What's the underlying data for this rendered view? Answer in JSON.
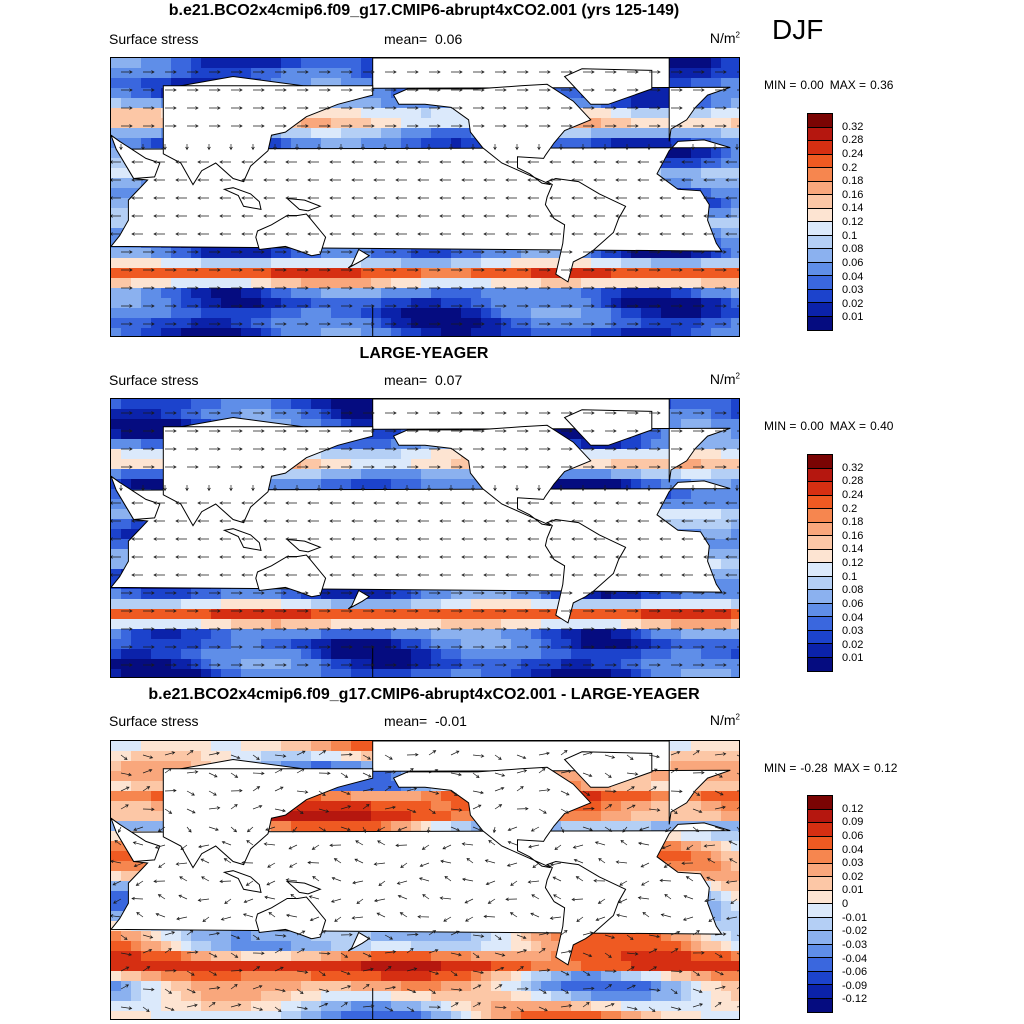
{
  "season": "DJF",
  "colors": {
    "land": "#ffffff",
    "coast": "#000000",
    "arrow": "#1a1a1a"
  },
  "icons": [
    "world-map",
    "wind-vector-arrow"
  ],
  "panels": [
    {
      "title": "b.e21.BCO2x4cmip6.f09_g17.CMIP6-abrupt4xCO2.001 (yrs 125-149)",
      "variable": "Surface stress",
      "mean_label": "mean=",
      "mean_value": "0.06",
      "units": "N/m",
      "units_exp": "2",
      "min_label": "MIN =",
      "min_value": "0.00",
      "max_label": "MAX =",
      "max_value": "0.36",
      "colorbar_ticks": [
        "0.32",
        "0.28",
        "0.24",
        "0.2",
        "0.18",
        "0.16",
        "0.14",
        "0.12",
        "0.1",
        "0.08",
        "0.06",
        "0.04",
        "0.03",
        "0.02",
        "0.01"
      ],
      "colorbar_colors": [
        "#7a0403",
        "#b5170f",
        "#d62f12",
        "#ef5a22",
        "#f6864f",
        "#f9a77c",
        "#fcc7a6",
        "#fde4d2",
        "#dbe9fb",
        "#b4cff5",
        "#8bb1ef",
        "#5f8ee8",
        "#3a67de",
        "#1c43cc",
        "#0b22aa",
        "#050c80"
      ],
      "mode": "abs"
    },
    {
      "title": "LARGE-YEAGER",
      "variable": "Surface stress",
      "mean_label": "mean=",
      "mean_value": "0.07",
      "units": "N/m",
      "units_exp": "2",
      "min_label": "MIN =",
      "min_value": "0.00",
      "max_label": "MAX =",
      "max_value": "0.40",
      "colorbar_ticks": [
        "0.32",
        "0.28",
        "0.24",
        "0.2",
        "0.18",
        "0.16",
        "0.14",
        "0.12",
        "0.1",
        "0.08",
        "0.06",
        "0.04",
        "0.03",
        "0.02",
        "0.01"
      ],
      "colorbar_colors": [
        "#7a0403",
        "#b5170f",
        "#d62f12",
        "#ef5a22",
        "#f6864f",
        "#f9a77c",
        "#fcc7a6",
        "#fde4d2",
        "#dbe9fb",
        "#b4cff5",
        "#8bb1ef",
        "#5f8ee8",
        "#3a67de",
        "#1c43cc",
        "#0b22aa",
        "#050c80"
      ],
      "mode": "abs"
    },
    {
      "title": "b.e21.BCO2x4cmip6.f09_g17.CMIP6-abrupt4xCO2.001 - LARGE-YEAGER",
      "variable": "Surface stress",
      "mean_label": "mean=",
      "mean_value": "-0.01",
      "units": "N/m",
      "units_exp": "2",
      "min_label": "MIN =",
      "min_value": "-0.28",
      "max_label": "MAX =",
      "max_value": "0.12",
      "colorbar_ticks": [
        "0.12",
        "0.09",
        "0.06",
        "0.04",
        "0.03",
        "0.02",
        "0.01",
        "0",
        "-0.01",
        "-0.02",
        "-0.03",
        "-0.04",
        "-0.06",
        "-0.09",
        "-0.12"
      ],
      "colorbar_colors": [
        "#7a0403",
        "#b5170f",
        "#d62f12",
        "#ef5a22",
        "#f6864f",
        "#f9a77c",
        "#fcc7a6",
        "#fde4d2",
        "#dbe9fb",
        "#b4cff5",
        "#8bb1ef",
        "#5f8ee8",
        "#3a67de",
        "#1c43cc",
        "#0b22aa",
        "#050c80"
      ],
      "mode": "diff"
    }
  ]
}
